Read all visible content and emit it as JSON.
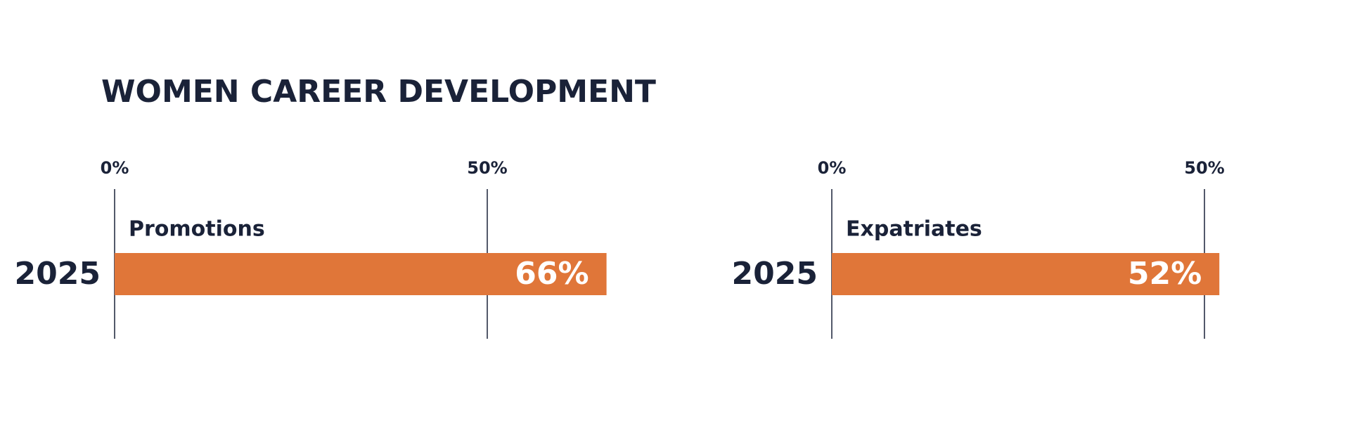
{
  "title": "WOMEN CAREER DEVELOPMENT",
  "chart_data": [
    {
      "type": "bar",
      "orientation": "horizontal",
      "title": "Promotions",
      "categories": [
        "2025"
      ],
      "values": [
        66
      ],
      "value_labels": [
        "66%"
      ],
      "color": "#e07639",
      "xlim": [
        0,
        50
      ],
      "xticks": [
        {
          "value": 0,
          "label": "0%"
        },
        {
          "value": 50,
          "label": "50%"
        }
      ],
      "grid": true
    },
    {
      "type": "bar",
      "orientation": "horizontal",
      "title": "Expatriates",
      "categories": [
        "2025"
      ],
      "values": [
        52
      ],
      "value_labels": [
        "52%"
      ],
      "color": "#e07639",
      "xlim": [
        0,
        50
      ],
      "xticks": [
        {
          "value": 0,
          "label": "0%"
        },
        {
          "value": 50,
          "label": "50%"
        }
      ],
      "grid": true
    }
  ]
}
